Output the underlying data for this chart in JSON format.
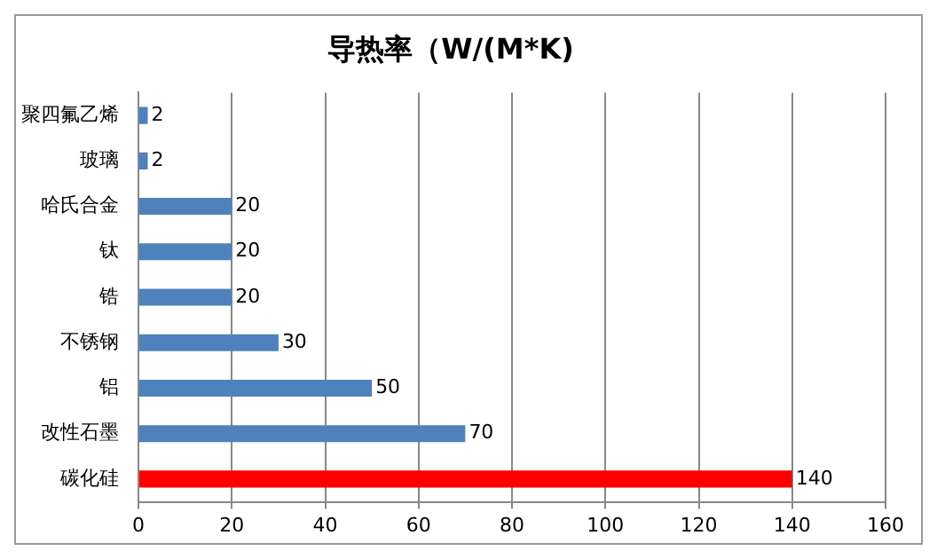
{
  "chart_data": {
    "type": "bar",
    "orientation": "horizontal",
    "title": "导热率（W/(M*K)",
    "categories": [
      "聚四氟乙烯",
      "玻璃",
      "哈氏合金",
      "钛",
      "锆",
      "不锈钢",
      "铝",
      "改性石墨",
      "碳化硅"
    ],
    "values": [
      2,
      2,
      20,
      20,
      20,
      30,
      50,
      70,
      140
    ],
    "colors": [
      "#4f81bd",
      "#4f81bd",
      "#4f81bd",
      "#4f81bd",
      "#4f81bd",
      "#4f81bd",
      "#4f81bd",
      "#4f81bd",
      "#ff0000"
    ],
    "xlim": [
      0,
      160
    ],
    "xticks": [
      0,
      20,
      40,
      60,
      80,
      100,
      120,
      140,
      160
    ],
    "grid": "x",
    "data_labels": true
  }
}
